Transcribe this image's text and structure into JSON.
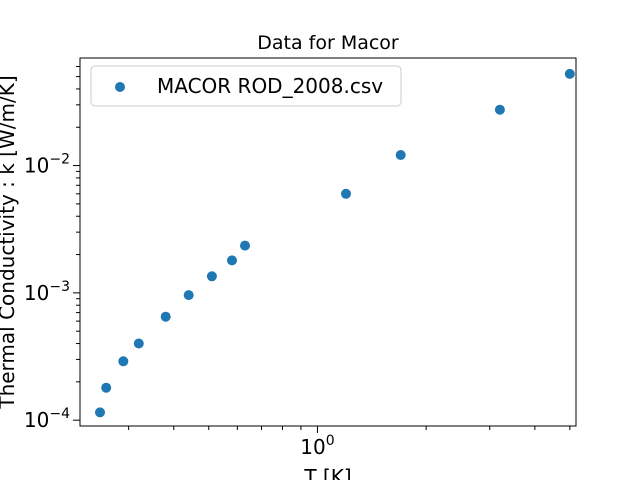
{
  "chart_data": {
    "type": "scatter",
    "title": "Data for Macor",
    "xlabel": "T [K]",
    "ylabel": "Thermal Conductivity : k [W/m/K]",
    "x_scale": "log",
    "y_scale": "log",
    "xlim": [
      0.22,
      5.2
    ],
    "ylim": [
      9e-05,
      0.07
    ],
    "grid": false,
    "legend_position": "top-left",
    "x_ticks": [
      {
        "value": 1,
        "label": "10^0"
      }
    ],
    "y_ticks": [
      {
        "value": 0.0001,
        "label": "10^-4"
      },
      {
        "value": 0.001,
        "label": "10^-3"
      },
      {
        "value": 0.01,
        "label": "10^-2"
      }
    ],
    "series": [
      {
        "name": "MACOR ROD_2008.csv",
        "color": "#1f77b4",
        "x": [
          0.25,
          0.26,
          0.29,
          0.32,
          0.38,
          0.44,
          0.51,
          0.58,
          0.63,
          1.2,
          1.7,
          3.2,
          5.0
        ],
        "y": [
          0.000115,
          0.00018,
          0.00029,
          0.0004,
          0.00065,
          0.00096,
          0.00135,
          0.0018,
          0.00235,
          0.006,
          0.0121,
          0.0275,
          0.0525
        ]
      }
    ]
  }
}
